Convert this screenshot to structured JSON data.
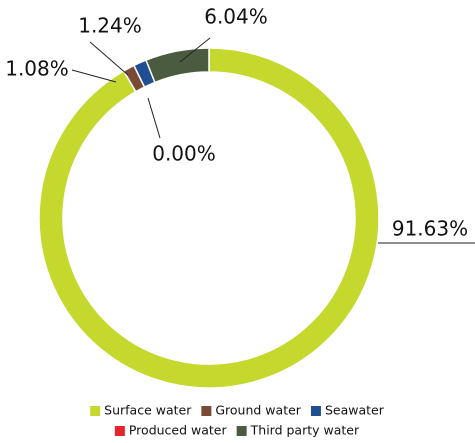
{
  "chart_data": {
    "type": "donut",
    "categories": [
      "Surface water",
      "Ground water",
      "Seawater",
      "Produced water",
      "Third party water"
    ],
    "values": [
      91.63,
      1.08,
      1.24,
      0,
      6.04
    ],
    "value_labels": [
      "91.63%",
      "1.08%",
      "1.24%",
      "0.00%",
      "6.04%"
    ],
    "colors": [
      "#c5d82e",
      "#7b4a36",
      "#1f4e91",
      "#e3262c",
      "#4b5b40"
    ],
    "legend": "bottom"
  }
}
